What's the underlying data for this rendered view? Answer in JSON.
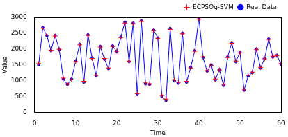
{
  "chart_data": {
    "type": "line",
    "x_label": "Time",
    "y_label": "Value",
    "x": [
      1,
      2,
      3,
      4,
      5,
      6,
      7,
      8,
      9,
      10,
      11,
      12,
      13,
      14,
      15,
      16,
      17,
      18,
      19,
      20,
      21,
      22,
      23,
      24,
      25,
      26,
      27,
      28,
      29,
      30,
      31,
      32,
      33,
      34,
      35,
      36,
      37,
      38,
      39,
      40,
      41,
      42,
      43,
      44,
      45,
      46,
      47,
      48,
      49,
      50,
      51,
      52,
      53,
      54,
      55,
      56,
      57,
      58,
      59,
      60
    ],
    "series": [
      {
        "name": "ECPSOg-SVM",
        "color": "#ff0000",
        "marker": "plus",
        "line_style": "none",
        "values": [
          1540,
          2660,
          2440,
          1960,
          2410,
          1990,
          1080,
          900,
          1030,
          1600,
          2130,
          980,
          2430,
          1700,
          1170,
          2060,
          1700,
          1400,
          2080,
          1930,
          2360,
          2820,
          1620,
          2800,
          590,
          2870,
          930,
          900,
          2580,
          2330,
          530,
          420,
          2620,
          1020,
          950,
          2480,
          980,
          1400,
          1930,
          2940,
          1750,
          1320,
          1480,
          1050,
          1340,
          880,
          1730,
          2180,
          1620,
          1880,
          730,
          1170,
          1270,
          1980,
          1420,
          1690,
          2300,
          1770,
          1790,
          1540
        ]
      },
      {
        "name": "Real Data",
        "color": "#0000ff",
        "marker": "dot",
        "line_style": "solid",
        "values": [
          1500,
          2680,
          2420,
          1950,
          2430,
          1980,
          1050,
          880,
          1050,
          1620,
          2150,
          950,
          2450,
          1720,
          1150,
          2080,
          1680,
          1380,
          2100,
          1920,
          2380,
          2850,
          1600,
          2820,
          560,
          2900,
          900,
          880,
          2600,
          2350,
          500,
          380,
          2650,
          1000,
          920,
          2500,
          950,
          1420,
          1950,
          2980,
          1730,
          1300,
          1500,
          1020,
          1350,
          850,
          1750,
          2200,
          1600,
          1900,
          700,
          1150,
          1250,
          2000,
          1400,
          1700,
          2320,
          1750,
          1800,
          1520
        ]
      }
    ],
    "xlim": [
      0,
      60
    ],
    "xticks": [
      0,
      10,
      20,
      30,
      40,
      50,
      60
    ],
    "ylim": [
      0,
      3000
    ],
    "yticks": [
      0,
      500,
      1000,
      1500,
      2000,
      2500,
      3000
    ],
    "grid": false,
    "legend": "upper right"
  }
}
